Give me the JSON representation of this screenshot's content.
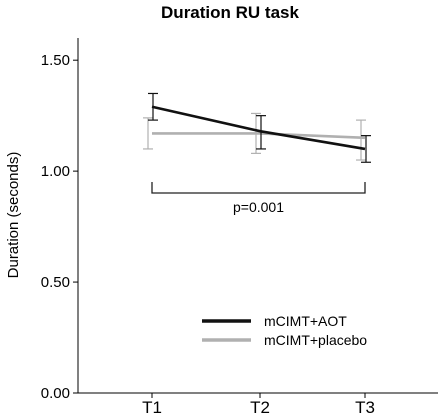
{
  "chart_data": {
    "type": "line",
    "title": "Duration RU task",
    "xlabel": "",
    "ylabel": "Duration (seconds)",
    "categories": [
      "T1",
      "T2",
      "T3"
    ],
    "ylim": [
      0,
      1.6
    ],
    "yticks": [
      {
        "value": 0,
        "label": "0.00"
      },
      {
        "value": 0.5,
        "label": "0.50"
      },
      {
        "value": 1.0,
        "label": "1.00"
      },
      {
        "value": 1.5,
        "label": "1.50"
      }
    ],
    "series": [
      {
        "name": "mCIMT+AOT",
        "color": "#111111",
        "values": [
          1.29,
          1.18,
          1.1
        ],
        "error_low": [
          1.23,
          1.1,
          1.04
        ],
        "error_high": [
          1.35,
          1.25,
          1.16
        ]
      },
      {
        "name": "mCIMT+placebo",
        "color": "#b0b0b0",
        "values": [
          1.17,
          1.17,
          1.15
        ],
        "error_low": [
          1.1,
          1.08,
          1.05
        ],
        "error_high": [
          1.24,
          1.26,
          1.23
        ]
      }
    ],
    "annotation": {
      "text": "p=0.001",
      "from": "T1",
      "to": "T3"
    },
    "legend_position": "bottom-right",
    "grid": false
  }
}
